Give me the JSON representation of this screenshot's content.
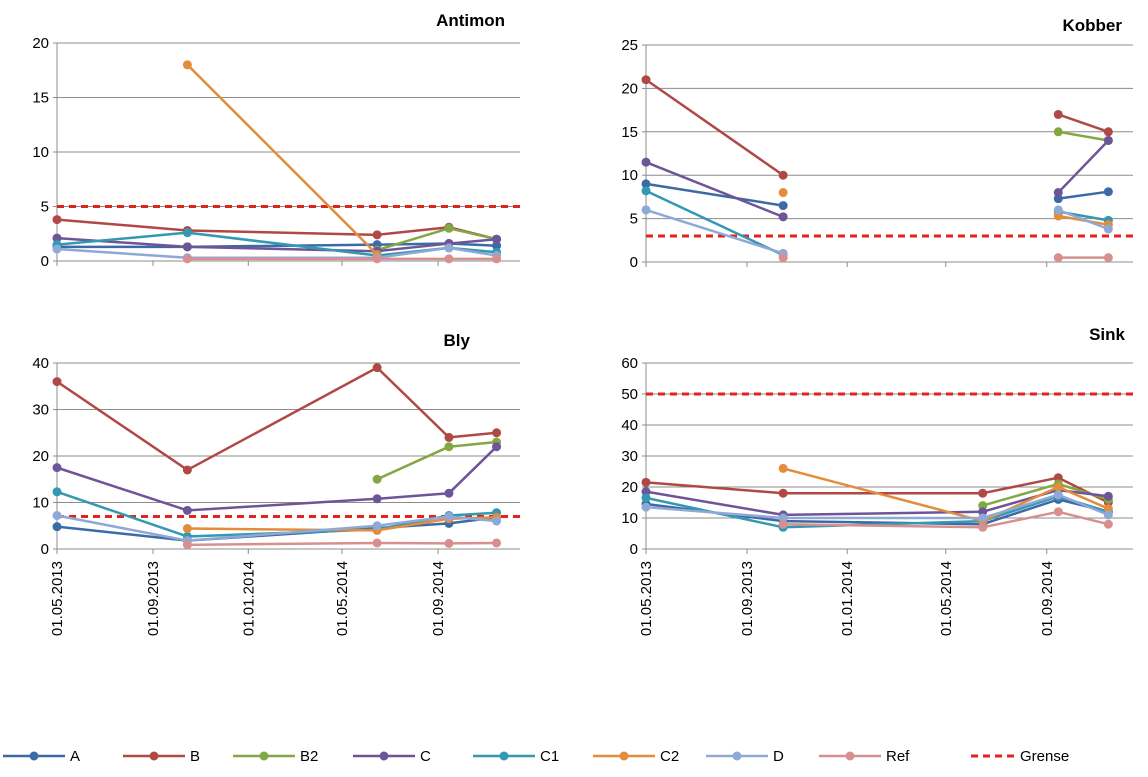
{
  "colors": {
    "A": "#3c6aa6",
    "B": "#b04945",
    "B2": "#83a843",
    "C": "#6e5597",
    "C1": "#3398b1",
    "C2": "#e48c3c",
    "D": "#8fa9d6",
    "Ref": "#d8908f",
    "Grense": "#e2231a",
    "grid": "#8c8c8c",
    "axis": "#8c8c8c"
  },
  "x_tick_labels": [
    "01.05.2013",
    "01.09.2013",
    "01.01.2014",
    "01.05.2014",
    "01.09.2014"
  ],
  "legend": [
    {
      "key": "A",
      "label": "A",
      "dashed": false
    },
    {
      "key": "B",
      "label": "B",
      "dashed": false
    },
    {
      "key": "B2",
      "label": "B2",
      "dashed": false
    },
    {
      "key": "C",
      "label": "C",
      "dashed": false
    },
    {
      "key": "C1",
      "label": "C1",
      "dashed": false
    },
    {
      "key": "C2",
      "label": "C2",
      "dashed": false
    },
    {
      "key": "D",
      "label": "D",
      "dashed": false
    },
    {
      "key": "Ref",
      "label": "Ref",
      "dashed": false
    },
    {
      "key": "Grense",
      "label": "Grense",
      "dashed": true
    }
  ],
  "chart_data": [
    {
      "type": "line",
      "title": "Antimon",
      "xlabel": "",
      "ylabel": "",
      "ylim": [
        0,
        20
      ],
      "yticks": [
        0,
        5,
        10,
        15,
        20
      ],
      "grid": true,
      "show_x_labels": false,
      "xlim": [
        "2013-05-01",
        "2014-12-15"
      ],
      "limit": 5,
      "series": [
        {
          "name": "A",
          "points": [
            [
              "2013-05-01",
              1.3
            ],
            [
              "2013-10-15",
              1.3
            ],
            [
              "2014-06-15",
              1.5
            ],
            [
              "2014-09-15",
              1.6
            ],
            [
              "2014-11-15",
              1.4
            ]
          ]
        },
        {
          "name": "B",
          "points": [
            [
              "2013-05-01",
              3.8
            ],
            [
              "2013-10-15",
              2.8
            ],
            [
              "2014-06-15",
              2.4
            ],
            [
              "2014-09-15",
              3.1
            ],
            [
              "2014-11-15",
              2.0
            ]
          ]
        },
        {
          "name": "B2",
          "points": [
            [
              "2014-06-15",
              1.0
            ],
            [
              "2014-09-15",
              3.0
            ],
            [
              "2014-11-15",
              2.0
            ]
          ]
        },
        {
          "name": "C",
          "points": [
            [
              "2013-05-01",
              2.1
            ],
            [
              "2013-10-15",
              1.3
            ],
            [
              "2014-06-15",
              0.9
            ],
            [
              "2014-09-15",
              1.6
            ],
            [
              "2014-11-15",
              2.0
            ]
          ]
        },
        {
          "name": "C1",
          "points": [
            [
              "2013-05-01",
              1.5
            ],
            [
              "2013-10-15",
              2.6
            ],
            [
              "2014-06-15",
              0.5
            ],
            [
              "2014-09-15",
              1.2
            ],
            [
              "2014-11-15",
              0.8
            ]
          ]
        },
        {
          "name": "C2",
          "points": [
            [
              "2013-10-15",
              18.0
            ],
            [
              "2014-06-15",
              0.6
            ]
          ]
        },
        {
          "name": "D",
          "points": [
            [
              "2013-05-01",
              1.1
            ],
            [
              "2013-10-15",
              0.3
            ],
            [
              "2014-06-15",
              0.3
            ],
            [
              "2014-09-15",
              1.2
            ],
            [
              "2014-11-15",
              0.5
            ]
          ]
        },
        {
          "name": "Ref",
          "points": [
            [
              "2013-10-15",
              0.2
            ],
            [
              "2014-06-15",
              0.2
            ],
            [
              "2014-09-15",
              0.2
            ],
            [
              "2014-11-15",
              0.2
            ]
          ]
        }
      ]
    },
    {
      "type": "line",
      "title": "Kobber",
      "xlabel": "",
      "ylabel": "",
      "ylim": [
        0,
        25
      ],
      "yticks": [
        0,
        5,
        10,
        15,
        20,
        25
      ],
      "grid": true,
      "show_x_labels": false,
      "xlim": [
        "2013-05-01",
        "2014-12-15"
      ],
      "limit": 3,
      "series": [
        {
          "name": "A",
          "points": [
            [
              "2013-05-01",
              9.0
            ],
            [
              "2013-10-15",
              6.5
            ],
            null,
            [
              "2014-09-15",
              7.3
            ],
            [
              "2014-11-15",
              8.1
            ]
          ]
        },
        {
          "name": "B",
          "points": [
            [
              "2013-05-01",
              21.0
            ],
            [
              "2013-10-15",
              10.0
            ],
            null,
            [
              "2014-09-15",
              17.0
            ],
            [
              "2014-11-15",
              15.0
            ]
          ]
        },
        {
          "name": "B2",
          "points": [
            [
              "2014-09-15",
              15.0
            ],
            [
              "2014-11-15",
              14.0
            ]
          ]
        },
        {
          "name": "C",
          "points": [
            [
              "2013-05-01",
              11.5
            ],
            [
              "2013-10-15",
              5.2
            ],
            null,
            [
              "2014-09-15",
              8.0
            ],
            [
              "2014-11-15",
              14.0
            ]
          ]
        },
        {
          "name": "C1",
          "points": [
            [
              "2013-05-01",
              8.2
            ],
            [
              "2013-10-15",
              0.8
            ],
            null,
            [
              "2014-09-15",
              5.8
            ],
            [
              "2014-11-15",
              4.8
            ]
          ]
        },
        {
          "name": "C2",
          "points": [
            [
              "2013-10-15",
              8.0
            ],
            null,
            [
              "2014-09-15",
              5.3
            ],
            [
              "2014-11-15",
              4.3
            ]
          ]
        },
        {
          "name": "D",
          "points": [
            [
              "2013-05-01",
              6.0
            ],
            [
              "2013-10-15",
              1.0
            ],
            null,
            [
              "2014-09-15",
              6.0
            ],
            [
              "2014-11-15",
              3.8
            ]
          ]
        },
        {
          "name": "Ref",
          "points": [
            [
              "2013-10-15",
              0.5
            ],
            null,
            [
              "2014-09-15",
              0.5
            ],
            [
              "2014-11-15",
              0.5
            ]
          ]
        }
      ]
    },
    {
      "type": "line",
      "title": "Bly",
      "xlabel": "",
      "ylabel": "",
      "ylim": [
        0,
        40
      ],
      "yticks": [
        0,
        10,
        20,
        30,
        40
      ],
      "grid": true,
      "show_x_labels": true,
      "xlim": [
        "2013-05-01",
        "2014-12-15"
      ],
      "limit": 7,
      "series": [
        {
          "name": "A",
          "points": [
            [
              "2013-05-01",
              4.8
            ],
            [
              "2013-10-15",
              1.8
            ],
            [
              "2014-06-15",
              4.5
            ],
            [
              "2014-09-15",
              5.5
            ],
            [
              "2014-11-15",
              6.8
            ]
          ]
        },
        {
          "name": "B",
          "points": [
            [
              "2013-05-01",
              36.0
            ],
            [
              "2013-10-15",
              17.0
            ],
            [
              "2014-06-15",
              39.0
            ],
            [
              "2014-09-15",
              24.0
            ],
            [
              "2014-11-15",
              25.0
            ]
          ]
        },
        {
          "name": "B2",
          "points": [
            [
              "2014-06-15",
              15.0
            ],
            [
              "2014-09-15",
              22.0
            ],
            [
              "2014-11-15",
              23.0
            ]
          ]
        },
        {
          "name": "C",
          "points": [
            [
              "2013-05-01",
              17.5
            ],
            [
              "2013-10-15",
              8.3
            ],
            [
              "2014-06-15",
              10.8
            ],
            [
              "2014-09-15",
              12.0
            ],
            [
              "2014-11-15",
              22.0
            ]
          ]
        },
        {
          "name": "C1",
          "points": [
            [
              "2013-05-01",
              12.3
            ],
            [
              "2013-10-15",
              2.7
            ],
            [
              "2014-06-15",
              4.2
            ],
            [
              "2014-09-15",
              7.2
            ],
            [
              "2014-11-15",
              7.8
            ]
          ]
        },
        {
          "name": "C2",
          "points": [
            [
              "2013-10-15",
              4.4
            ],
            [
              "2014-06-15",
              4.0
            ],
            [
              "2014-09-15",
              6.5
            ],
            [
              "2014-11-15",
              6.8
            ]
          ]
        },
        {
          "name": "D",
          "points": [
            [
              "2013-05-01",
              7.2
            ],
            [
              "2013-10-15",
              1.8
            ],
            [
              "2014-06-15",
              5.0
            ],
            [
              "2014-09-15",
              7.0
            ],
            [
              "2014-11-15",
              6.0
            ]
          ]
        },
        {
          "name": "Ref",
          "points": [
            [
              "2013-10-15",
              0.9
            ],
            [
              "2014-06-15",
              1.3
            ],
            [
              "2014-09-15",
              1.2
            ],
            [
              "2014-11-15",
              1.3
            ]
          ]
        }
      ]
    },
    {
      "type": "line",
      "title": "Sink",
      "xlabel": "",
      "ylabel": "",
      "ylim": [
        0,
        60
      ],
      "yticks": [
        0,
        10,
        20,
        30,
        40,
        50,
        60
      ],
      "grid": true,
      "show_x_labels": true,
      "xlim": [
        "2013-05-01",
        "2014-12-15"
      ],
      "limit": 50,
      "series": [
        {
          "name": "A",
          "points": [
            [
              "2013-05-01",
              14.5
            ],
            [
              "2013-10-15",
              9.0
            ],
            [
              "2014-06-15",
              8.0
            ],
            [
              "2014-09-15",
              16.0
            ],
            [
              "2014-11-15",
              12.0
            ]
          ]
        },
        {
          "name": "B",
          "points": [
            [
              "2013-05-01",
              21.5
            ],
            [
              "2013-10-15",
              18.0
            ],
            [
              "2014-06-15",
              18.0
            ],
            [
              "2014-09-15",
              23.0
            ],
            [
              "2014-11-15",
              15.0
            ]
          ]
        },
        {
          "name": "B2",
          "points": [
            [
              "2014-06-15",
              14.0
            ],
            [
              "2014-09-15",
              21.0
            ],
            [
              "2014-11-15",
              16.0
            ]
          ]
        },
        {
          "name": "C",
          "points": [
            [
              "2013-05-01",
              18.5
            ],
            [
              "2013-10-15",
              11.0
            ],
            [
              "2014-06-15",
              12.0
            ],
            [
              "2014-09-15",
              19.0
            ],
            [
              "2014-11-15",
              17.0
            ]
          ]
        },
        {
          "name": "C1",
          "points": [
            [
              "2013-05-01",
              16.5
            ],
            [
              "2013-10-15",
              7.0
            ],
            [
              "2014-06-15",
              9.0
            ],
            [
              "2014-09-15",
              17.0
            ],
            [
              "2014-11-15",
              12.0
            ]
          ]
        },
        {
          "name": "C2",
          "points": [
            [
              "2013-10-15",
              26.0
            ],
            [
              "2014-06-15",
              9.0
            ],
            [
              "2014-09-15",
              20.0
            ],
            [
              "2014-11-15",
              13.0
            ]
          ]
        },
        {
          "name": "D",
          "points": [
            [
              "2013-05-01",
              13.5
            ],
            [
              "2013-10-15",
              10.0
            ],
            [
              "2014-06-15",
              10.0
            ],
            [
              "2014-09-15",
              17.5
            ],
            [
              "2014-11-15",
              11.0
            ]
          ]
        },
        {
          "name": "Ref",
          "points": [
            [
              "2013-10-15",
              8.0
            ],
            [
              "2014-06-15",
              7.0
            ],
            [
              "2014-09-15",
              12.0
            ],
            [
              "2014-11-15",
              8.0
            ]
          ]
        }
      ]
    }
  ]
}
